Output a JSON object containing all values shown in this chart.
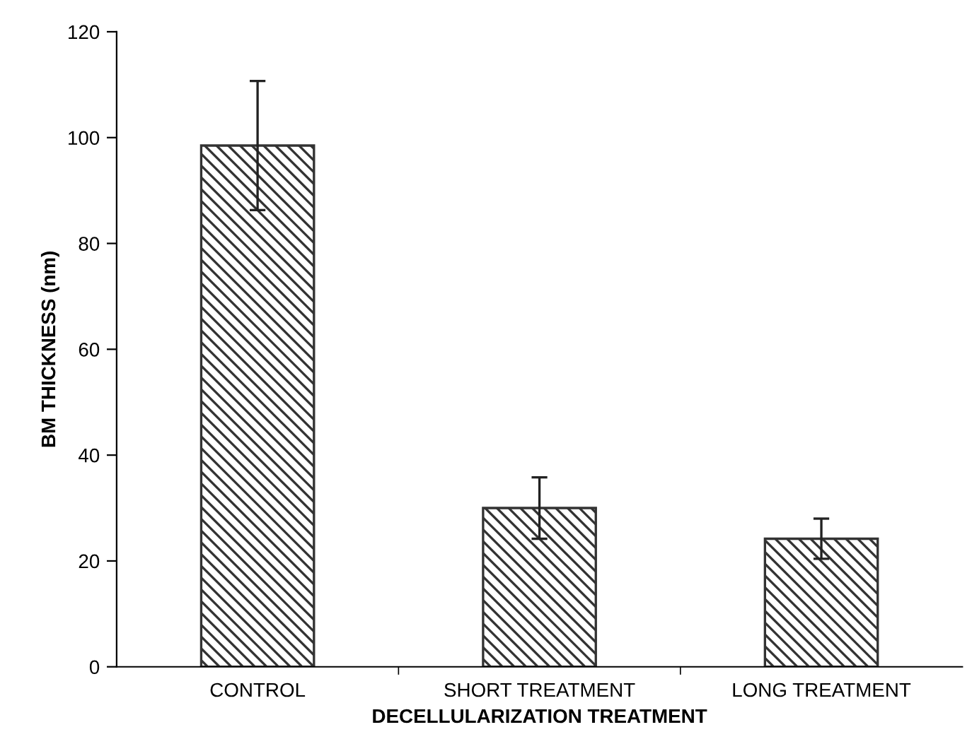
{
  "chart_data": {
    "type": "bar",
    "xlabel": "DECELLULARIZATION TREATMENT",
    "ylabel": "BM THICKNESS (nm)",
    "categories": [
      "CONTROL",
      "SHORT TREATMENT",
      "LONG TREATMENT"
    ],
    "values": [
      98.5,
      30.0,
      24.2
    ],
    "errors": [
      12.2,
      5.8,
      3.8
    ],
    "color": "#333333",
    "ylim": [
      0,
      120
    ],
    "yticks": [
      0,
      20,
      40,
      60,
      80,
      100,
      120
    ],
    "grid": false
  }
}
